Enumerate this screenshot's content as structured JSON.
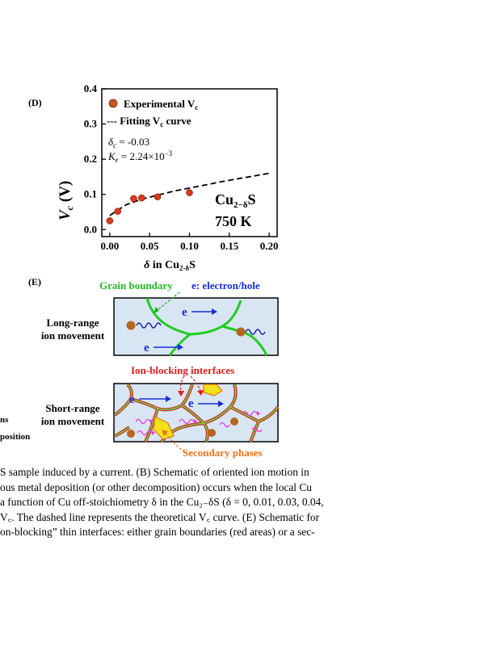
{
  "panel_d": {
    "label": "(D)",
    "legend": {
      "marker_label": "Experimental V",
      "marker_sub": "c",
      "line_label": "--- Fitting V",
      "line_sub": "c",
      "line_label_end": " curve"
    },
    "params": {
      "delta_c": "δ",
      "delta_c_sub": "c",
      "delta_c_val": " = -0.03",
      "ke": "K",
      "ke_sub": "e",
      "ke_val": " = 2.24×10",
      "ke_exp": "−3"
    },
    "compound": {
      "main": "Cu",
      "sub": "2−δ",
      "end": "S"
    },
    "temperature": "750 K",
    "xlabel": {
      "pre": "δ",
      "mid": " in Cu",
      "sub": "2-δ",
      "end": "S"
    },
    "ylabel": {
      "main": "V",
      "sub": "c",
      "end": " (V)"
    }
  },
  "chart_data": {
    "type": "scatter",
    "x": [
      0.0,
      0.01,
      0.03,
      0.04,
      0.06,
      0.1
    ],
    "y": [
      0.025,
      0.052,
      0.088,
      0.09,
      0.093,
      0.105
    ],
    "fit_curve": {
      "x": [
        0.0,
        0.02,
        0.04,
        0.06,
        0.08,
        0.1,
        0.12,
        0.14,
        0.16,
        0.18,
        0.2
      ],
      "y": [
        0.04,
        0.07,
        0.086,
        0.098,
        0.109,
        0.118,
        0.127,
        0.136,
        0.144,
        0.152,
        0.16
      ]
    },
    "xticks": [
      "0.00",
      "0.05",
      "0.10",
      "0.15",
      "0.20"
    ],
    "yticks": [
      "0.0",
      "0.1",
      "0.2",
      "0.3",
      "0.4"
    ],
    "xlim": [
      -0.01,
      0.21
    ],
    "ylim": [
      -0.02,
      0.4
    ],
    "marker_color": "#d63a1a"
  },
  "panel_e": {
    "label": "(E)",
    "grain_boundary": "Grain boundary",
    "electron_hole": "e: electron/hole",
    "long_range": [
      "Long-range",
      "ion movement"
    ],
    "short_range": [
      "Short-range",
      "ion movement"
    ],
    "ion_blocking": "Ion-blocking interfaces",
    "secondary": "Secondary phases",
    "e_symbol": "e"
  },
  "left_cut": {
    "line1": "ns",
    "line2": "position"
  },
  "caption_lines": [
    "S sample induced by a current. (B) Schematic of oriented ion motion in",
    "ous metal deposition (or other decomposition) occurs when the local Cu",
    "a function of Cu off-stoichiometry δ in the Cu₂₋δS (δ = 0, 0.01, 0.03, 0.04,",
    "V꜀. The dashed line represents the theoretical V꜀ curve. (E) Schematic for",
    "on-blocking” thin interfaces: either grain boundaries (red areas) or a sec-"
  ],
  "colors": {
    "green": "#22cc22",
    "blue": "#1a2ed6",
    "red": "#e01b1b",
    "orange": "#e8741a",
    "panel_bg": "#d8e6f3",
    "magenta": "#e53bd8"
  }
}
